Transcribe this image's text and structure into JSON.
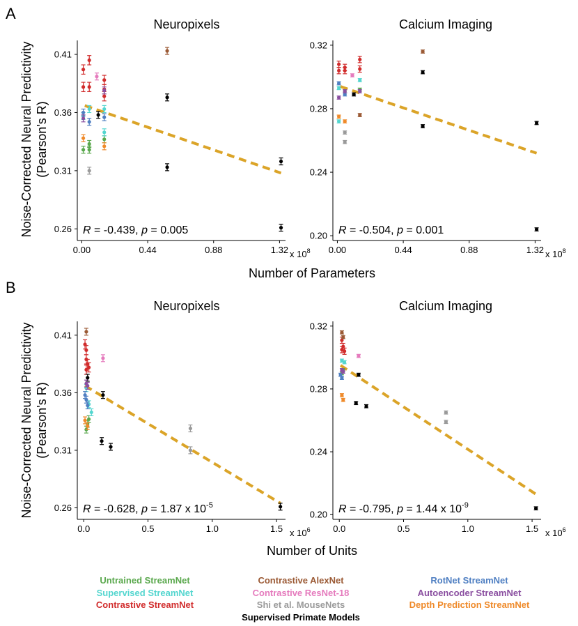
{
  "sections": [
    {
      "letter": "A",
      "xlabel": "Number of Parameters",
      "panels": [
        {
          "title": "Neuropixels",
          "ylabel_line1": "Noise-Corrected Neural Predictivity",
          "ylabel_line2": "(Pearson's R)",
          "exponent": "8",
          "x_ticks": [
            "0.00",
            "0.44",
            "0.88",
            "1.32"
          ],
          "y_ticks": [
            "0.26",
            "0.31",
            "0.36",
            "0.41"
          ],
          "stat": {
            "r": "-0.439",
            "p": "0.005",
            "p_exp": ""
          }
        },
        {
          "title": "Calcium Imaging",
          "exponent": "8",
          "x_ticks": [
            "0.00",
            "0.44",
            "0.88",
            "1.32"
          ],
          "y_ticks": [
            "0.20",
            "0.24",
            "0.28",
            "0.32"
          ],
          "stat": {
            "r": "-0.504",
            "p": "0.001",
            "p_exp": ""
          }
        }
      ]
    },
    {
      "letter": "B",
      "xlabel": "Number of Units",
      "panels": [
        {
          "title": "Neuropixels",
          "ylabel_line1": "Noise-Corrected Neural Predictivity",
          "ylabel_line2": "(Pearson's R)",
          "exponent": "6",
          "x_ticks": [
            "0.0",
            "0.5",
            "1.0",
            "1.5"
          ],
          "y_ticks": [
            "0.26",
            "0.31",
            "0.36",
            "0.41"
          ],
          "stat": {
            "r": "-0.628",
            "p": "1.87 x 10",
            "p_exp": "-5"
          }
        },
        {
          "title": "Calcium Imaging",
          "exponent": "6",
          "x_ticks": [
            "0.0",
            "0.5",
            "1.0",
            "1.5"
          ],
          "y_ticks": [
            "0.20",
            "0.24",
            "0.28",
            "0.32"
          ],
          "stat": {
            "r": "-0.795",
            "p": "1.44 x 10",
            "p_exp": "-9"
          }
        }
      ]
    }
  ],
  "stat_labels": {
    "r": "R",
    "p": "p"
  },
  "exp_base": "x 10",
  "legend": [
    [
      {
        "label": "Untrained StreamNet",
        "color": "#5aa84d"
      },
      {
        "label": "Supervised StreamNet",
        "color": "#54d6cf"
      },
      {
        "label": "Contrastive StreamNet",
        "color": "#d12c2c"
      }
    ],
    [
      {
        "label": "Contrastive AlexNet",
        "color": "#9b5a35"
      },
      {
        "label": "Contrastive ResNet-18",
        "color": "#e57bbd"
      },
      {
        "label": "Shi et al. MouseNets",
        "color": "#9a9a9a"
      },
      {
        "label": "Supervised Primate Models",
        "color": "#000000"
      }
    ],
    [
      {
        "label": "RotNet StreamNet",
        "color": "#4f7fc2"
      },
      {
        "label": "Autoencoder StreamNet",
        "color": "#8a4fa0"
      },
      {
        "label": "Depth Prediction StreamNet",
        "color": "#ef8a2a"
      }
    ]
  ],
  "trend_color": "#dba428",
  "chart_data": [
    {
      "type": "scatter",
      "title": "Neuropixels",
      "xlabel": "Number of Parameters (x 10^8)",
      "ylabel": "Noise-Corrected Neural Predictivity (Pearson's R)",
      "xlim": [
        -0.03,
        1.36
      ],
      "ylim": [
        0.25,
        0.422
      ],
      "trend": [
        [
          0.02,
          0.366
        ],
        [
          1.33,
          0.308
        ]
      ],
      "series": [
        {
          "name": "Untrained StreamNet",
          "color": "#5aa84d",
          "points": [
            [
              0.01,
              0.328,
              0.003
            ],
            [
              0.05,
              0.333,
              0.003
            ],
            [
              0.05,
              0.328,
              0.003
            ],
            [
              0.15,
              0.337,
              0.003
            ]
          ]
        },
        {
          "name": "Supervised StreamNet",
          "color": "#54d6cf",
          "points": [
            [
              0.01,
              0.357,
              0.003
            ],
            [
              0.05,
              0.363,
              0.003
            ],
            [
              0.15,
              0.363,
              0.003
            ],
            [
              0.15,
              0.343,
              0.003
            ]
          ]
        },
        {
          "name": "Contrastive StreamNet",
          "color": "#d12c2c",
          "points": [
            [
              0.01,
              0.397,
              0.004
            ],
            [
              0.05,
              0.405,
              0.004
            ],
            [
              0.01,
              0.382,
              0.004
            ],
            [
              0.05,
              0.382,
              0.004
            ],
            [
              0.15,
              0.388,
              0.004
            ],
            [
              0.15,
              0.38,
              0.004
            ],
            [
              0.15,
              0.374,
              0.004
            ]
          ]
        },
        {
          "name": "Contrastive AlexNet",
          "color": "#9b5a35",
          "points": [
            [
              0.57,
              0.413,
              0.003
            ]
          ]
        },
        {
          "name": "Contrastive ResNet-18",
          "color": "#e57bbd",
          "points": [
            [
              0.1,
              0.391,
              0.003
            ]
          ]
        },
        {
          "name": "Shi et al. MouseNets",
          "color": "#9a9a9a",
          "points": [
            [
              0.05,
              0.31,
              0.003
            ]
          ]
        },
        {
          "name": "Supervised Primate Models",
          "color": "#000000",
          "points": [
            [
              0.11,
              0.358,
              0.003
            ],
            [
              0.57,
              0.373,
              0.003
            ],
            [
              0.57,
              0.313,
              0.003
            ],
            [
              1.33,
              0.318,
              0.003
            ],
            [
              1.33,
              0.261,
              0.003
            ]
          ]
        },
        {
          "name": "RotNet StreamNet",
          "color": "#4f7fc2",
          "points": [
            [
              0.01,
              0.36,
              0.003
            ],
            [
              0.05,
              0.352,
              0.003
            ],
            [
              0.15,
              0.356,
              0.003
            ]
          ]
        },
        {
          "name": "Autoencoder StreamNet",
          "color": "#8a4fa0",
          "points": [
            [
              0.01,
              0.355,
              0.003
            ],
            [
              0.15,
              0.379,
              0.003
            ]
          ]
        },
        {
          "name": "Depth Prediction StreamNet",
          "color": "#ef8a2a",
          "points": [
            [
              0.01,
              0.338,
              0.003
            ],
            [
              0.15,
              0.331,
              0.003
            ]
          ]
        }
      ]
    },
    {
      "type": "scatter",
      "title": "Calcium Imaging",
      "xlabel": "Number of Parameters (x 10^8)",
      "ylabel": "Noise-Corrected Neural Predictivity (Pearson's R)",
      "xlim": [
        -0.03,
        1.36
      ],
      "ylim": [
        0.197,
        0.323
      ],
      "trend": [
        [
          0.02,
          0.294
        ],
        [
          1.33,
          0.252
        ]
      ],
      "series": [
        {
          "name": "Untrained StreamNet",
          "color": "#5aa84d",
          "points": [
            [
              0.05,
              0.291,
              0.001
            ],
            [
              0.15,
              0.292,
              0.001
            ]
          ]
        },
        {
          "name": "Supervised StreamNet",
          "color": "#54d6cf",
          "points": [
            [
              0.01,
              0.293,
              0.001
            ],
            [
              0.15,
              0.298,
              0.001
            ],
            [
              0.01,
              0.272,
              0.001
            ]
          ]
        },
        {
          "name": "Contrastive StreamNet",
          "color": "#d12c2c",
          "points": [
            [
              0.01,
              0.308,
              0.002
            ],
            [
              0.05,
              0.306,
              0.002
            ],
            [
              0.01,
              0.304,
              0.002
            ],
            [
              0.05,
              0.304,
              0.002
            ],
            [
              0.15,
              0.311,
              0.002
            ],
            [
              0.15,
              0.305,
              0.002
            ]
          ]
        },
        {
          "name": "Contrastive AlexNet",
          "color": "#9b5a35",
          "points": [
            [
              0.57,
              0.316,
              0.001
            ],
            [
              0.15,
              0.276,
              0.001
            ]
          ]
        },
        {
          "name": "Contrastive ResNet-18",
          "color": "#e57bbd",
          "points": [
            [
              0.1,
              0.301,
              0.001
            ]
          ]
        },
        {
          "name": "Shi et al. MouseNets",
          "color": "#9a9a9a",
          "points": [
            [
              0.05,
              0.265,
              0.001
            ],
            [
              0.05,
              0.259,
              0.001
            ]
          ]
        },
        {
          "name": "Supervised Primate Models",
          "color": "#000000",
          "points": [
            [
              0.11,
              0.289,
              0.001
            ],
            [
              0.57,
              0.303,
              0.001
            ],
            [
              0.57,
              0.269,
              0.001
            ],
            [
              1.33,
              0.271,
              0.001
            ],
            [
              1.33,
              0.204,
              0.001
            ]
          ]
        },
        {
          "name": "RotNet StreamNet",
          "color": "#4f7fc2",
          "points": [
            [
              0.01,
              0.296,
              0.001
            ],
            [
              0.05,
              0.289,
              0.001
            ]
          ]
        },
        {
          "name": "Autoencoder StreamNet",
          "color": "#8a4fa0",
          "points": [
            [
              0.01,
              0.287,
              0.001
            ],
            [
              0.05,
              0.291,
              0.001
            ],
            [
              0.15,
              0.291,
              0.001
            ]
          ]
        },
        {
          "name": "Depth Prediction StreamNet",
          "color": "#ef8a2a",
          "points": [
            [
              0.01,
              0.275,
              0.001
            ],
            [
              0.05,
              0.272,
              0.001
            ]
          ]
        }
      ]
    },
    {
      "type": "scatter",
      "title": "Neuropixels",
      "xlabel": "Number of Units (x 10^6)",
      "ylabel": "Noise-Corrected Neural Predictivity (Pearson's R)",
      "xlim": [
        -0.05,
        1.57
      ],
      "ylim": [
        0.25,
        0.422
      ],
      "trend": [
        [
          0.01,
          0.366
        ],
        [
          1.53,
          0.264
        ]
      ],
      "series": [
        {
          "name": "Untrained StreamNet",
          "color": "#5aa84d",
          "points": [
            [
              0.02,
              0.328,
              0.003
            ],
            [
              0.03,
              0.333,
              0.003
            ],
            [
              0.04,
              0.337,
              0.003
            ]
          ]
        },
        {
          "name": "Supervised StreamNet",
          "color": "#54d6cf",
          "points": [
            [
              0.02,
              0.364,
              0.003
            ],
            [
              0.04,
              0.35,
              0.003
            ],
            [
              0.06,
              0.343,
              0.003
            ]
          ]
        },
        {
          "name": "Contrastive StreamNet",
          "color": "#d12c2c",
          "points": [
            [
              0.01,
              0.402,
              0.004
            ],
            [
              0.02,
              0.397,
              0.004
            ],
            [
              0.02,
              0.389,
              0.004
            ],
            [
              0.03,
              0.385,
              0.004
            ],
            [
              0.02,
              0.38,
              0.004
            ],
            [
              0.04,
              0.382,
              0.004
            ]
          ]
        },
        {
          "name": "Contrastive AlexNet",
          "color": "#9b5a35",
          "points": [
            [
              0.02,
              0.413,
              0.003
            ]
          ]
        },
        {
          "name": "Contrastive ResNet-18",
          "color": "#e57bbd",
          "points": [
            [
              0.15,
              0.39,
              0.003
            ]
          ]
        },
        {
          "name": "Shi et al. MouseNets",
          "color": "#9a9a9a",
          "points": [
            [
              0.83,
              0.329,
              0.003
            ],
            [
              0.83,
              0.31,
              0.003
            ]
          ]
        },
        {
          "name": "Supervised Primate Models",
          "color": "#000000",
          "points": [
            [
              0.03,
              0.373,
              0.003
            ],
            [
              0.15,
              0.358,
              0.003
            ],
            [
              0.14,
              0.318,
              0.003
            ],
            [
              0.21,
              0.313,
              0.003
            ],
            [
              1.53,
              0.261,
              0.003
            ]
          ]
        },
        {
          "name": "RotNet StreamNet",
          "color": "#4f7fc2",
          "points": [
            [
              0.01,
              0.358,
              0.003
            ],
            [
              0.02,
              0.354,
              0.003
            ],
            [
              0.03,
              0.349,
              0.003
            ]
          ]
        },
        {
          "name": "Autoencoder StreamNet",
          "color": "#8a4fa0",
          "points": [
            [
              0.02,
              0.368,
              0.003
            ],
            [
              0.03,
              0.366,
              0.003
            ]
          ]
        },
        {
          "name": "Depth Prediction StreamNet",
          "color": "#ef8a2a",
          "points": [
            [
              0.01,
              0.336,
              0.003
            ],
            [
              0.03,
              0.331,
              0.003
            ]
          ]
        }
      ]
    },
    {
      "type": "scatter",
      "title": "Calcium Imaging",
      "xlabel": "Number of Units (x 10^6)",
      "ylabel": "Noise-Corrected Neural Predictivity (Pearson's R)",
      "xlim": [
        -0.05,
        1.57
      ],
      "ylim": [
        0.197,
        0.323
      ],
      "trend": [
        [
          0.01,
          0.295
        ],
        [
          1.53,
          0.213
        ]
      ],
      "series": [
        {
          "name": "Untrained StreamNet",
          "color": "#5aa84d",
          "points": [
            [
              0.02,
              0.29,
              0.001
            ],
            [
              0.03,
              0.292,
              0.001
            ]
          ]
        },
        {
          "name": "Supervised StreamNet",
          "color": "#54d6cf",
          "points": [
            [
              0.02,
              0.298,
              0.001
            ],
            [
              0.04,
              0.297,
              0.001
            ]
          ]
        },
        {
          "name": "Contrastive StreamNet",
          "color": "#d12c2c",
          "points": [
            [
              0.02,
              0.311,
              0.002
            ],
            [
              0.03,
              0.307,
              0.002
            ],
            [
              0.02,
              0.305,
              0.002
            ],
            [
              0.04,
              0.304,
              0.002
            ]
          ]
        },
        {
          "name": "Contrastive AlexNet",
          "color": "#9b5a35",
          "points": [
            [
              0.02,
              0.316,
              0.001
            ],
            [
              0.03,
              0.313,
              0.001
            ]
          ]
        },
        {
          "name": "Contrastive ResNet-18",
          "color": "#e57bbd",
          "points": [
            [
              0.15,
              0.301,
              0.001
            ]
          ]
        },
        {
          "name": "Shi et al. MouseNets",
          "color": "#9a9a9a",
          "points": [
            [
              0.83,
              0.265,
              0.001
            ],
            [
              0.83,
              0.259,
              0.001
            ]
          ]
        },
        {
          "name": "Supervised Primate Models",
          "color": "#000000",
          "points": [
            [
              0.15,
              0.289,
              0.001
            ],
            [
              0.13,
              0.271,
              0.001
            ],
            [
              0.21,
              0.269,
              0.001
            ],
            [
              1.53,
              0.204,
              0.001
            ]
          ]
        },
        {
          "name": "RotNet StreamNet",
          "color": "#4f7fc2",
          "points": [
            [
              0.01,
              0.289,
              0.001
            ],
            [
              0.02,
              0.287,
              0.001
            ]
          ]
        },
        {
          "name": "Autoencoder StreamNet",
          "color": "#8a4fa0",
          "points": [
            [
              0.02,
              0.292,
              0.001
            ],
            [
              0.03,
              0.291,
              0.001
            ]
          ]
        },
        {
          "name": "Depth Prediction StreamNet",
          "color": "#ef8a2a",
          "points": [
            [
              0.02,
              0.276,
              0.001
            ],
            [
              0.03,
              0.273,
              0.001
            ]
          ]
        }
      ]
    }
  ]
}
